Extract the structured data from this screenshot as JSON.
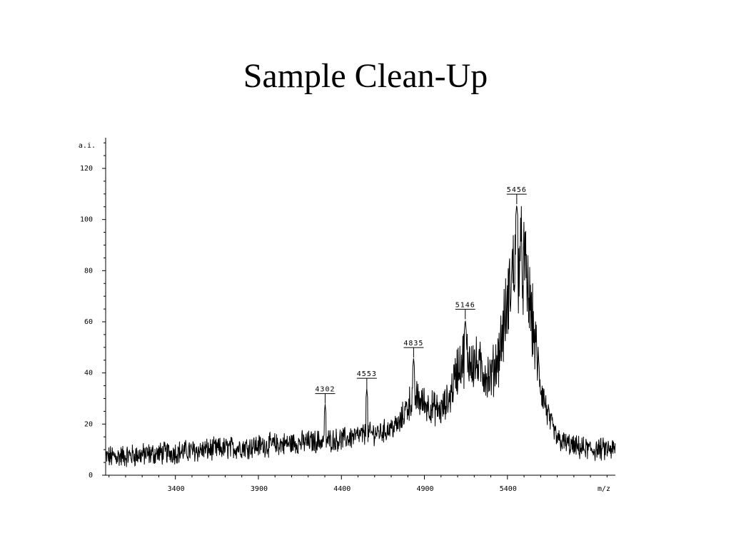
{
  "slide": {
    "title": "Sample Clean-Up"
  },
  "chart_data": {
    "type": "line",
    "title": "Sample Clean-Up",
    "xlabel": "m/z",
    "ylabel": "a.i.",
    "xlim": [
      2980,
      6050
    ],
    "ylim": [
      0,
      132
    ],
    "x_ticks": [
      3400,
      3900,
      4400,
      4900,
      5400
    ],
    "y_ticks": [
      0,
      20,
      40,
      60,
      80,
      100,
      120
    ],
    "grid": false,
    "legend": "none",
    "line_color": "#000000",
    "peak_labels": [
      {
        "label": "4302",
        "x": 4302,
        "y": 28
      },
      {
        "label": "4553",
        "x": 4553,
        "y": 34
      },
      {
        "label": "4835",
        "x": 4835,
        "y": 46
      },
      {
        "label": "5146",
        "x": 5146,
        "y": 61
      },
      {
        "label": "5456",
        "x": 5456,
        "y": 106
      }
    ],
    "envelope": {
      "x": [
        2980,
        3200,
        3400,
        3600,
        3800,
        4000,
        4200,
        4400,
        4550,
        4650,
        4750,
        4790,
        4835,
        4900,
        5000,
        5050,
        5100,
        5146,
        5200,
        5300,
        5350,
        5400,
        5430,
        5456,
        5500,
        5550,
        5600,
        5650,
        5700,
        5800,
        5900,
        6050
      ],
      "y": [
        7,
        8,
        9,
        10,
        11,
        12,
        13,
        14,
        16,
        17,
        20,
        26,
        31,
        28,
        25,
        30,
        42,
        47,
        44,
        38,
        48,
        66,
        80,
        86,
        82,
        60,
        35,
        22,
        14,
        11,
        10,
        10
      ]
    }
  }
}
